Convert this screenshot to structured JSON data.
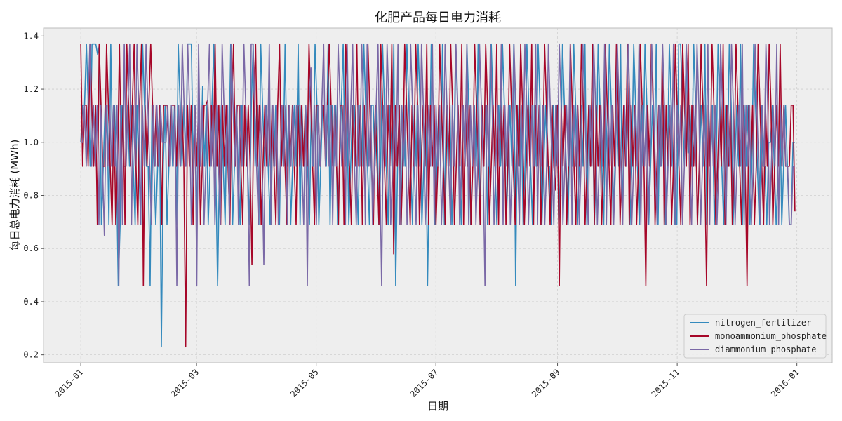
{
  "chart_data": {
    "type": "line",
    "title": "化肥产品每日电力消耗",
    "xlabel": "日期",
    "ylabel": "每日总电力消耗 (MWh)",
    "x_start": "2015-01-01",
    "x_end": "2015-12-31",
    "xlim": [
      "2014-12-13",
      "2016-01-19"
    ],
    "ylim": [
      0.17,
      1.43
    ],
    "xticks": [
      "2015-01",
      "2015-03",
      "2015-05",
      "2015-07",
      "2015-09",
      "2015-11",
      "2016-01"
    ],
    "yticks": [
      0.2,
      0.4,
      0.6,
      0.8,
      1.0,
      1.2,
      1.4
    ],
    "grid": true,
    "legend_position": "lower-right",
    "series": [
      {
        "name": "nitrogen_fertilizer",
        "color": "#348abd",
        "values": [
          1.0,
          1.14,
          1.14,
          1.37,
          1.14,
          0.91,
          1.37,
          1.37,
          1.37,
          1.33,
          1.37,
          0.69,
          0.91,
          1.14,
          1.14,
          0.69,
          1.37,
          0.91,
          1.14,
          0.91,
          0.46,
          0.69,
          1.14,
          0.91,
          0.91,
          1.14,
          0.91,
          1.14,
          0.91,
          0.69,
          1.14,
          0.91,
          0.69,
          1.37,
          1.14,
          0.91,
          0.91,
          0.46,
          1.14,
          0.91,
          0.69,
          0.91,
          1.14,
          0.23,
          0.91,
          1.14,
          0.69,
          0.91,
          1.14,
          0.91,
          1.14,
          0.69,
          1.37,
          1.14,
          0.91,
          1.14,
          0.91,
          1.37,
          1.37,
          1.37,
          0.91,
          1.14,
          0.69,
          1.14,
          0.91,
          1.21,
          0.91,
          1.14,
          0.69,
          0.91,
          1.14,
          1.37,
          0.91,
          0.46,
          0.91,
          1.14,
          0.91,
          0.69,
          1.14,
          0.91,
          1.37,
          0.69,
          0.91,
          1.14,
          0.91,
          0.69,
          1.14,
          0.91,
          1.14,
          0.91,
          0.69,
          1.14,
          1.37,
          0.91,
          1.14,
          0.69,
          1.37,
          1.14,
          0.91,
          1.14,
          0.91,
          0.69,
          1.14,
          0.91,
          1.14,
          0.91,
          0.69,
          1.14,
          0.91,
          1.37,
          0.91,
          1.14,
          0.69,
          0.91,
          1.14,
          0.91,
          1.37,
          0.69,
          1.14,
          0.91,
          1.14,
          0.91,
          0.69,
          1.14,
          0.91,
          1.37,
          1.14,
          0.69,
          0.91,
          1.14,
          1.14,
          0.91,
          1.37,
          0.69,
          1.14,
          0.91,
          1.14,
          0.69,
          0.91,
          1.14,
          1.37,
          0.91,
          1.14,
          0.69,
          0.91,
          1.14,
          1.14,
          0.91,
          0.69,
          1.14,
          0.91,
          1.37,
          1.14,
          0.91,
          0.69,
          1.14,
          1.14,
          0.91,
          1.14,
          0.69,
          0.91,
          1.37,
          1.14,
          0.91,
          0.69,
          1.14,
          0.91,
          1.37,
          0.46,
          0.91,
          1.14,
          0.69,
          1.14,
          0.91,
          1.37,
          1.14,
          0.91,
          0.69,
          1.14,
          0.91,
          1.37,
          1.14,
          0.69,
          0.91,
          1.14,
          0.46,
          0.91,
          1.37,
          1.14,
          0.69,
          0.91,
          1.14,
          0.91,
          1.37,
          0.69,
          1.14,
          0.91,
          1.14,
          0.69,
          0.91,
          1.37,
          1.14,
          0.91,
          0.69,
          1.14,
          0.91,
          1.37,
          1.14,
          0.69,
          0.91,
          1.14,
          0.91,
          1.37,
          0.69,
          1.14,
          0.91,
          1.14,
          0.69,
          0.91,
          1.37,
          1.14,
          0.91,
          0.69,
          1.14,
          0.91,
          1.37,
          1.14,
          0.69,
          0.91,
          1.14,
          0.91,
          1.37,
          0.46,
          1.14,
          0.91,
          1.14,
          0.69,
          0.91,
          1.37,
          1.14,
          0.91,
          0.69,
          1.14,
          0.91,
          1.37,
          1.14,
          0.69,
          0.91,
          1.14,
          0.91,
          0.91,
          0.69,
          1.14,
          0.91,
          1.14,
          0.69,
          0.91,
          1.37,
          1.14,
          0.91,
          0.69,
          1.14,
          0.91,
          1.37,
          1.14,
          0.69,
          0.91,
          1.14,
          0.91,
          1.37,
          0.69,
          1.14,
          0.91,
          1.14,
          0.69,
          0.91,
          1.37,
          1.14,
          0.91,
          0.69,
          1.14,
          0.91,
          1.37,
          1.14,
          0.69,
          0.91,
          1.14,
          0.91,
          1.37,
          0.69,
          1.14,
          0.91,
          1.14,
          0.69,
          0.91,
          1.37,
          1.14,
          0.91,
          0.69,
          1.14,
          0.91,
          1.37,
          1.14,
          0.69,
          0.91,
          1.14,
          0.91,
          1.37,
          0.69,
          1.14,
          0.91,
          1.14,
          0.69,
          0.91,
          1.37,
          1.14,
          0.91,
          0.69,
          0.69,
          1.37,
          1.37,
          1.14,
          0.91,
          1.37,
          0.96,
          1.14,
          0.91,
          1.37,
          1.14,
          0.69,
          0.91,
          1.14,
          0.91,
          1.37,
          0.69,
          1.14,
          0.91,
          1.14,
          0.69,
          0.91,
          1.37,
          1.14,
          0.91,
          0.69,
          1.14,
          0.91,
          1.37,
          1.14,
          0.69,
          0.91,
          1.14,
          0.91,
          1.37,
          0.69,
          1.14,
          0.91,
          1.14,
          0.69,
          0.91,
          1.37,
          1.14,
          0.91,
          0.69,
          1.14,
          0.91,
          0.91,
          0.69,
          1.0,
          1.0,
          1.14,
          0.91,
          0.69,
          0.91,
          1.14,
          0.69,
          0.91,
          1.14,
          0.91,
          0.69,
          0.69,
          1.0,
          1.0
        ]
      },
      {
        "name": "monoammonium_phosphate",
        "color": "#a60628",
        "values": [
          1.37,
          0.91,
          1.14,
          1.14,
          0.91,
          1.37,
          1.14,
          0.91,
          1.14,
          0.69,
          1.37,
          1.14,
          0.91,
          0.91,
          1.37,
          1.14,
          0.91,
          0.69,
          1.14,
          0.69,
          0.91,
          1.37,
          0.91,
          1.14,
          0.69,
          1.37,
          1.14,
          0.91,
          1.14,
          1.37,
          0.91,
          0.69,
          1.14,
          1.37,
          0.46,
          1.14,
          0.91,
          1.14,
          1.37,
          1.14,
          0.91,
          1.14,
          0.91,
          1.14,
          0.69,
          1.14,
          1.14,
          1.14,
          0.91,
          1.14,
          1.14,
          1.14,
          0.91,
          1.14,
          0.91,
          1.14,
          0.91,
          0.23,
          1.14,
          0.91,
          1.14,
          0.69,
          1.14,
          0.91,
          1.14,
          0.69,
          0.91,
          1.14,
          1.14,
          1.16,
          0.91,
          1.14,
          0.91,
          1.37,
          0.91,
          1.14,
          0.69,
          1.14,
          0.91,
          1.14,
          0.91,
          0.69,
          1.14,
          1.37,
          0.91,
          1.14,
          1.14,
          0.91,
          0.69,
          1.14,
          0.91,
          1.14,
          0.91,
          0.54,
          1.14,
          1.37,
          0.91,
          1.14,
          0.69,
          0.91,
          1.14,
          0.91,
          1.14,
          0.91,
          1.14,
          0.91,
          0.69,
          1.14,
          1.37,
          0.91,
          1.14,
          0.91,
          0.69,
          1.14,
          0.91,
          1.14,
          0.91,
          0.69,
          1.14,
          0.91,
          1.14,
          0.91,
          1.14,
          0.91,
          1.37,
          1.14,
          0.91,
          0.69,
          1.14,
          1.14,
          0.91,
          1.14,
          1.14,
          0.91,
          1.14,
          1.37,
          1.14,
          0.91,
          1.14,
          0.91,
          0.69,
          1.14,
          1.14,
          0.69,
          1.37,
          1.14,
          0.91,
          0.69,
          1.14,
          0.91,
          1.37,
          0.91,
          1.14,
          0.69,
          1.14,
          0.91,
          1.37,
          1.14,
          0.91,
          0.69,
          1.14,
          0.91,
          0.69,
          1.37,
          1.14,
          0.91,
          0.69,
          1.14,
          0.91,
          1.37,
          0.58,
          1.14,
          0.91,
          1.14,
          0.69,
          0.91,
          1.37,
          1.14,
          0.91,
          0.69,
          1.14,
          0.91,
          1.37,
          1.14,
          0.69,
          0.91,
          1.14,
          0.91,
          1.37,
          0.69,
          1.14,
          0.91,
          1.14,
          0.69,
          0.91,
          1.37,
          1.14,
          0.91,
          0.69,
          1.14,
          0.91,
          1.37,
          1.14,
          0.69,
          0.91,
          1.14,
          0.91,
          1.37,
          0.69,
          1.14,
          0.91,
          1.14,
          0.69,
          0.91,
          1.37,
          1.14,
          0.91,
          0.69,
          1.14,
          0.91,
          1.37,
          1.14,
          0.69,
          0.91,
          1.14,
          0.91,
          1.37,
          0.69,
          1.14,
          0.91,
          1.14,
          0.69,
          0.91,
          1.37,
          1.14,
          0.91,
          0.69,
          1.14,
          0.91,
          1.37,
          1.14,
          0.69,
          0.91,
          1.14,
          0.91,
          1.37,
          0.69,
          1.14,
          0.91,
          1.14,
          0.69,
          0.91,
          1.37,
          1.14,
          0.91,
          0.69,
          1.14,
          0.91,
          0.82,
          1.14,
          0.46,
          1.14,
          0.91,
          1.14,
          0.69,
          0.91,
          1.37,
          1.14,
          0.91,
          0.69,
          1.14,
          0.91,
          1.37,
          1.14,
          0.69,
          0.91,
          1.14,
          0.91,
          1.37,
          0.69,
          1.14,
          0.91,
          1.14,
          0.69,
          0.91,
          1.37,
          1.14,
          0.91,
          0.69,
          1.14,
          0.91,
          1.37,
          1.14,
          0.69,
          0.91,
          1.14,
          0.91,
          1.37,
          0.69,
          1.14,
          0.91,
          1.14,
          0.69,
          0.91,
          1.37,
          1.14,
          0.91,
          0.46,
          1.14,
          0.91,
          1.37,
          1.14,
          0.69,
          0.91,
          1.14,
          0.91,
          1.37,
          0.69,
          1.14,
          0.91,
          1.14,
          0.69,
          0.91,
          1.37,
          1.14,
          0.91,
          0.69,
          1.37,
          1.14,
          0.91,
          1.37,
          0.69,
          1.14,
          0.91,
          1.14,
          0.69,
          0.91,
          1.37,
          1.14,
          0.91,
          0.46,
          1.14,
          0.91,
          1.37,
          1.14,
          0.69,
          0.91,
          1.14,
          0.91,
          1.37,
          0.69,
          1.14,
          0.91,
          1.14,
          0.69,
          0.91,
          1.37,
          1.14,
          0.91,
          0.69,
          1.14,
          0.91,
          0.46,
          1.14,
          0.91,
          1.14,
          0.69,
          0.91,
          1.37,
          1.14,
          0.91,
          0.69,
          1.14,
          0.91,
          1.37,
          1.14,
          0.69,
          0.91,
          1.14,
          0.91,
          1.37,
          0.91,
          1.14,
          0.91,
          0.91,
          0.91,
          1.14,
          1.14,
          0.74
        ]
      },
      {
        "name": "diammonium_phosphate",
        "color": "#7a68a6",
        "values": [
          1.0,
          1.0,
          1.14,
          0.91,
          1.14,
          1.37,
          0.91,
          1.14,
          0.91,
          1.14,
          0.69,
          1.14,
          0.91,
          0.65,
          1.14,
          0.91,
          1.14,
          0.91,
          1.14,
          0.91,
          1.14,
          0.46,
          1.14,
          0.69,
          1.37,
          0.91,
          1.14,
          1.37,
          0.69,
          1.14,
          0.91,
          1.37,
          1.14,
          0.69,
          1.14,
          0.91,
          1.37,
          1.14,
          0.91,
          0.69,
          1.14,
          0.91,
          1.14,
          0.91,
          1.14,
          1.0,
          1.0,
          1.0,
          1.14,
          0.91,
          1.14,
          0.91,
          1.14,
          0.46,
          1.14,
          0.91,
          1.37,
          1.14,
          0.91,
          1.37,
          1.14,
          0.69,
          0.91,
          1.14,
          0.46,
          1.37,
          0.91,
          1.14,
          0.69,
          0.91,
          1.14,
          1.37,
          0.91,
          1.14,
          0.69,
          1.14,
          0.91,
          0.69,
          1.37,
          1.14,
          0.91,
          1.14,
          0.69,
          1.37,
          1.14,
          0.91,
          1.14,
          0.69,
          1.14,
          0.91,
          1.37,
          1.14,
          0.91,
          0.46,
          1.37,
          1.37,
          1.14,
          0.91,
          0.69,
          1.14,
          0.91,
          0.54,
          1.14,
          0.91,
          1.37,
          0.69,
          1.14,
          0.91,
          1.14,
          0.69,
          0.91,
          1.14,
          0.91,
          1.14,
          0.69,
          1.14,
          0.91,
          1.14,
          0.91,
          1.14,
          1.14,
          1.14,
          0.91,
          0.69,
          1.14,
          0.46,
          1.14,
          1.28,
          0.91,
          1.14,
          0.69,
          1.14,
          0.91,
          1.14,
          1.37,
          0.91,
          1.14,
          0.91,
          1.14,
          0.69,
          1.14,
          0.91,
          1.37,
          1.14,
          0.91,
          1.14,
          0.69,
          1.37,
          0.91,
          1.14,
          1.37,
          0.91,
          0.69,
          1.14,
          0.91,
          1.37,
          1.14,
          0.69,
          1.37,
          0.91,
          1.14,
          0.69,
          0.91,
          1.14,
          1.37,
          0.91,
          0.46,
          1.14,
          0.91,
          1.37,
          1.14,
          0.69,
          0.91,
          1.14,
          0.91,
          1.37,
          0.69,
          1.14,
          0.91,
          1.14,
          0.69,
          0.91,
          1.37,
          1.14,
          0.91,
          0.69,
          1.14,
          0.91,
          1.37,
          1.14,
          0.69,
          0.91,
          1.14,
          0.91,
          1.37,
          0.69,
          1.14,
          0.91,
          1.14,
          0.69,
          0.91,
          1.37,
          1.14,
          0.91,
          0.69,
          1.14,
          0.91,
          1.37,
          1.14,
          0.69,
          0.91,
          1.14,
          0.91,
          1.37,
          0.69,
          1.14,
          0.91,
          1.14,
          0.69,
          0.91,
          1.37,
          1.14,
          0.91,
          0.46,
          1.14,
          0.91,
          1.37,
          1.14,
          0.69,
          0.91,
          1.14,
          0.91,
          1.37,
          0.69,
          1.14,
          0.91,
          1.14,
          0.69,
          0.91,
          1.37,
          1.14,
          0.91,
          0.69,
          1.14,
          0.91,
          1.37,
          1.14,
          0.69,
          0.91,
          1.14,
          0.91,
          1.37,
          0.69,
          1.14,
          0.91,
          1.14,
          0.69,
          0.91,
          1.37,
          1.14,
          0.91,
          0.69,
          1.14,
          0.91,
          1.37,
          1.14,
          0.69,
          0.91,
          1.14,
          0.91,
          1.37,
          0.69,
          1.14,
          0.91,
          1.14,
          0.69,
          0.91,
          1.37,
          1.14,
          0.91,
          0.69,
          1.14,
          0.91,
          1.37,
          1.14,
          0.69,
          0.91,
          1.14,
          0.91,
          1.37,
          0.69,
          1.14,
          0.91,
          1.14,
          0.69,
          0.91,
          1.37,
          1.14,
          0.91,
          0.69,
          1.14,
          0.91,
          1.37,
          1.14,
          0.69,
          0.91,
          1.14,
          0.91,
          1.37,
          0.69,
          1.14,
          0.91,
          1.14,
          0.69,
          0.91,
          1.37,
          1.14,
          0.91,
          0.69,
          1.14,
          0.91,
          1.37,
          1.14,
          0.69,
          0.91,
          1.14,
          0.91,
          1.37,
          0.69,
          1.14,
          0.91,
          1.14,
          0.69,
          0.91,
          1.37,
          1.14,
          0.91,
          0.69,
          1.14,
          0.91,
          1.37,
          1.14,
          0.69,
          0.91,
          1.14,
          0.91,
          1.37,
          0.69,
          1.14,
          0.91,
          1.14,
          0.69,
          0.91,
          1.37,
          1.14,
          0.91,
          0.69,
          1.14,
          0.91,
          1.37,
          1.14,
          0.69,
          0.91,
          1.14,
          0.91,
          1.37,
          0.69,
          1.14,
          0.91,
          1.14,
          0.69,
          0.91,
          1.37,
          1.14,
          0.91,
          0.69,
          1.14,
          0.91,
          1.37,
          1.14,
          0.69,
          0.91,
          1.14,
          0.91,
          1.37,
          0.69,
          1.14,
          0.91,
          1.14,
          0.91,
          0.91,
          0.69,
          0.69,
          0.91,
          0.91
        ]
      }
    ]
  }
}
